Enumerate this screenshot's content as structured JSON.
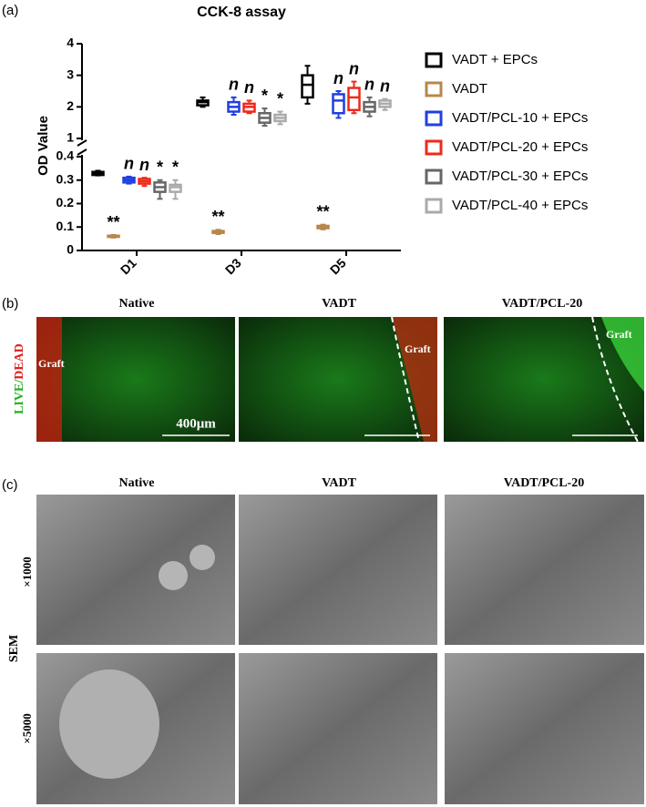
{
  "panel_labels": [
    "(a)",
    "(b)",
    "(c)"
  ],
  "chart_data": {
    "type": "box",
    "title": "CCK-8 assay",
    "ylabel": "OD Value",
    "categories": [
      "D1",
      "D3",
      "D5"
    ],
    "ylim": [
      0,
      4
    ],
    "ybreak": [
      0.4,
      1
    ],
    "yticks": [
      0,
      0.1,
      0.2,
      0.3,
      0.4,
      1,
      2,
      3,
      4
    ],
    "series": [
      {
        "name": "VADT + EPCs",
        "color": "#000000",
        "values": [
          {
            "min": 0.32,
            "q1": 0.322,
            "median": 0.33,
            "q3": 0.335,
            "max": 0.34
          },
          {
            "min": 2.0,
            "q1": 2.05,
            "median": 2.15,
            "q3": 2.2,
            "max": 2.3
          },
          {
            "min": 2.1,
            "q1": 2.3,
            "median": 2.7,
            "q3": 3.0,
            "max": 3.3
          }
        ],
        "annotations": [
          null,
          null,
          null
        ]
      },
      {
        "name": "VADT",
        "color": "#b8864b",
        "values": [
          {
            "min": 0.055,
            "q1": 0.058,
            "median": 0.06,
            "q3": 0.063,
            "max": 0.066
          },
          {
            "min": 0.07,
            "q1": 0.075,
            "median": 0.08,
            "q3": 0.083,
            "max": 0.088
          },
          {
            "min": 0.09,
            "q1": 0.095,
            "median": 0.1,
            "q3": 0.105,
            "max": 0.11
          }
        ],
        "annotations": [
          "**",
          "**",
          "**"
        ]
      },
      {
        "name": "VADT/PCL-10 + EPCs",
        "color": "#1f3fe0",
        "values": [
          {
            "min": 0.285,
            "q1": 0.29,
            "median": 0.3,
            "q3": 0.31,
            "max": 0.315
          },
          {
            "min": 1.75,
            "q1": 1.85,
            "median": 2.0,
            "q3": 2.15,
            "max": 2.3
          },
          {
            "min": 1.65,
            "q1": 1.8,
            "median": 2.2,
            "q3": 2.4,
            "max": 2.5
          }
        ],
        "annotations": [
          "n",
          "n",
          "n"
        ]
      },
      {
        "name": "VADT/PCL-20 + EPCs",
        "color": "#ee2a1a",
        "values": [
          {
            "min": 0.275,
            "q1": 0.285,
            "median": 0.295,
            "q3": 0.305,
            "max": 0.31
          },
          {
            "min": 1.8,
            "q1": 1.85,
            "median": 2.0,
            "q3": 2.1,
            "max": 2.2
          },
          {
            "min": 1.8,
            "q1": 1.9,
            "median": 2.3,
            "q3": 2.6,
            "max": 2.8
          }
        ],
        "annotations": [
          "n",
          "n",
          "n"
        ]
      },
      {
        "name": "VADT/PCL-30 + EPCs",
        "color": "#666666",
        "values": [
          {
            "min": 0.22,
            "q1": 0.25,
            "median": 0.27,
            "q3": 0.29,
            "max": 0.3
          },
          {
            "min": 1.4,
            "q1": 1.5,
            "median": 1.65,
            "q3": 1.8,
            "max": 1.95
          },
          {
            "min": 1.7,
            "q1": 1.85,
            "median": 2.0,
            "q3": 2.15,
            "max": 2.3
          }
        ],
        "annotations": [
          "*",
          "*",
          "n"
        ]
      },
      {
        "name": "VADT/PCL-40 + EPCs",
        "color": "#aaaaaa",
        "values": [
          {
            "min": 0.22,
            "q1": 0.25,
            "median": 0.27,
            "q3": 0.28,
            "max": 0.3
          },
          {
            "min": 1.45,
            "q1": 1.55,
            "median": 1.65,
            "q3": 1.75,
            "max": 1.85
          },
          {
            "min": 1.9,
            "q1": 2.0,
            "median": 2.1,
            "q3": 2.2,
            "max": 2.25
          }
        ],
        "annotations": [
          "*",
          "*",
          "n"
        ]
      }
    ]
  },
  "live_dead": {
    "ylabel_live": "LIVE/",
    "ylabel_dead": "DEAD",
    "columns": [
      "Native",
      "VADT",
      "VADT/PCL-20"
    ],
    "graft_labels": [
      "Graft",
      "Graft",
      "Graft"
    ],
    "scale_bar": "400μm"
  },
  "sem": {
    "ylabel": "SEM",
    "columns": [
      "Native",
      "VADT",
      "VADT/PCL-20"
    ],
    "rows": [
      "×1000",
      "×5000"
    ]
  }
}
